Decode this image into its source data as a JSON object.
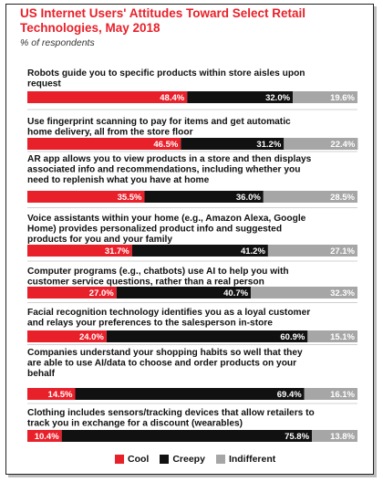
{
  "chart_data": {
    "type": "bar",
    "stacked": true,
    "orientation": "horizontal",
    "title": "US Internet Users' Attitudes Toward Select Retail Technologies, May 2018",
    "subtitle": "% of respondents",
    "categories": [
      "Robots guide you to specific products within store aisles upon request",
      "Use fingerprint scanning to pay for items and get automatic home delivery, all from the store floor",
      "AR app allows you to view products in a store and then displays associated info and recommendations, including whether you need to replenish what you have at home",
      "Voice assistants within your home (e.g., Amazon Alexa, Google Home) provides personalized product info and suggested products for you and your family",
      "Computer programs (e.g., chatbots) use AI to help you with customer service questions, rather than a real person",
      "Facial recognition technology identifies you as a loyal customer and relays your preferences to the salesperson in-store",
      "Companies understand your shopping habits so well that they are able to use AI/data to choose and order products on your behalf",
      "Clothing includes sensors/tracking devices that allow retailers to track you in exchange for a discount (wearables)"
    ],
    "series": [
      {
        "name": "Cool",
        "values": [
          48.4,
          46.5,
          35.5,
          31.7,
          27.0,
          24.0,
          14.5,
          10.4
        ],
        "labels": [
          "48.4%",
          "46.5%",
          "35.5%",
          "31.7%",
          "27.0%",
          "24.0%",
          "14.5%",
          "10.4%"
        ],
        "color": "#e8202a"
      },
      {
        "name": "Creepy",
        "values": [
          32.0,
          31.2,
          36.0,
          41.2,
          40.7,
          60.9,
          69.4,
          75.8
        ],
        "labels": [
          "32.0%",
          "31.2%",
          "36.0%",
          "41.2%",
          "40.7%",
          "60.9%",
          "69.4%",
          "75.8%"
        ],
        "color": "#111111"
      },
      {
        "name": "Indifferent",
        "values": [
          19.6,
          22.4,
          28.5,
          27.1,
          32.3,
          15.1,
          16.1,
          13.8
        ],
        "labels": [
          "19.6%",
          "22.4%",
          "28.5%",
          "27.1%",
          "32.3%",
          "15.1%",
          "16.1%",
          "13.8%"
        ],
        "color": "#a6a6a6"
      }
    ],
    "xlim": [
      0,
      100
    ],
    "legend_position": "bottom"
  }
}
